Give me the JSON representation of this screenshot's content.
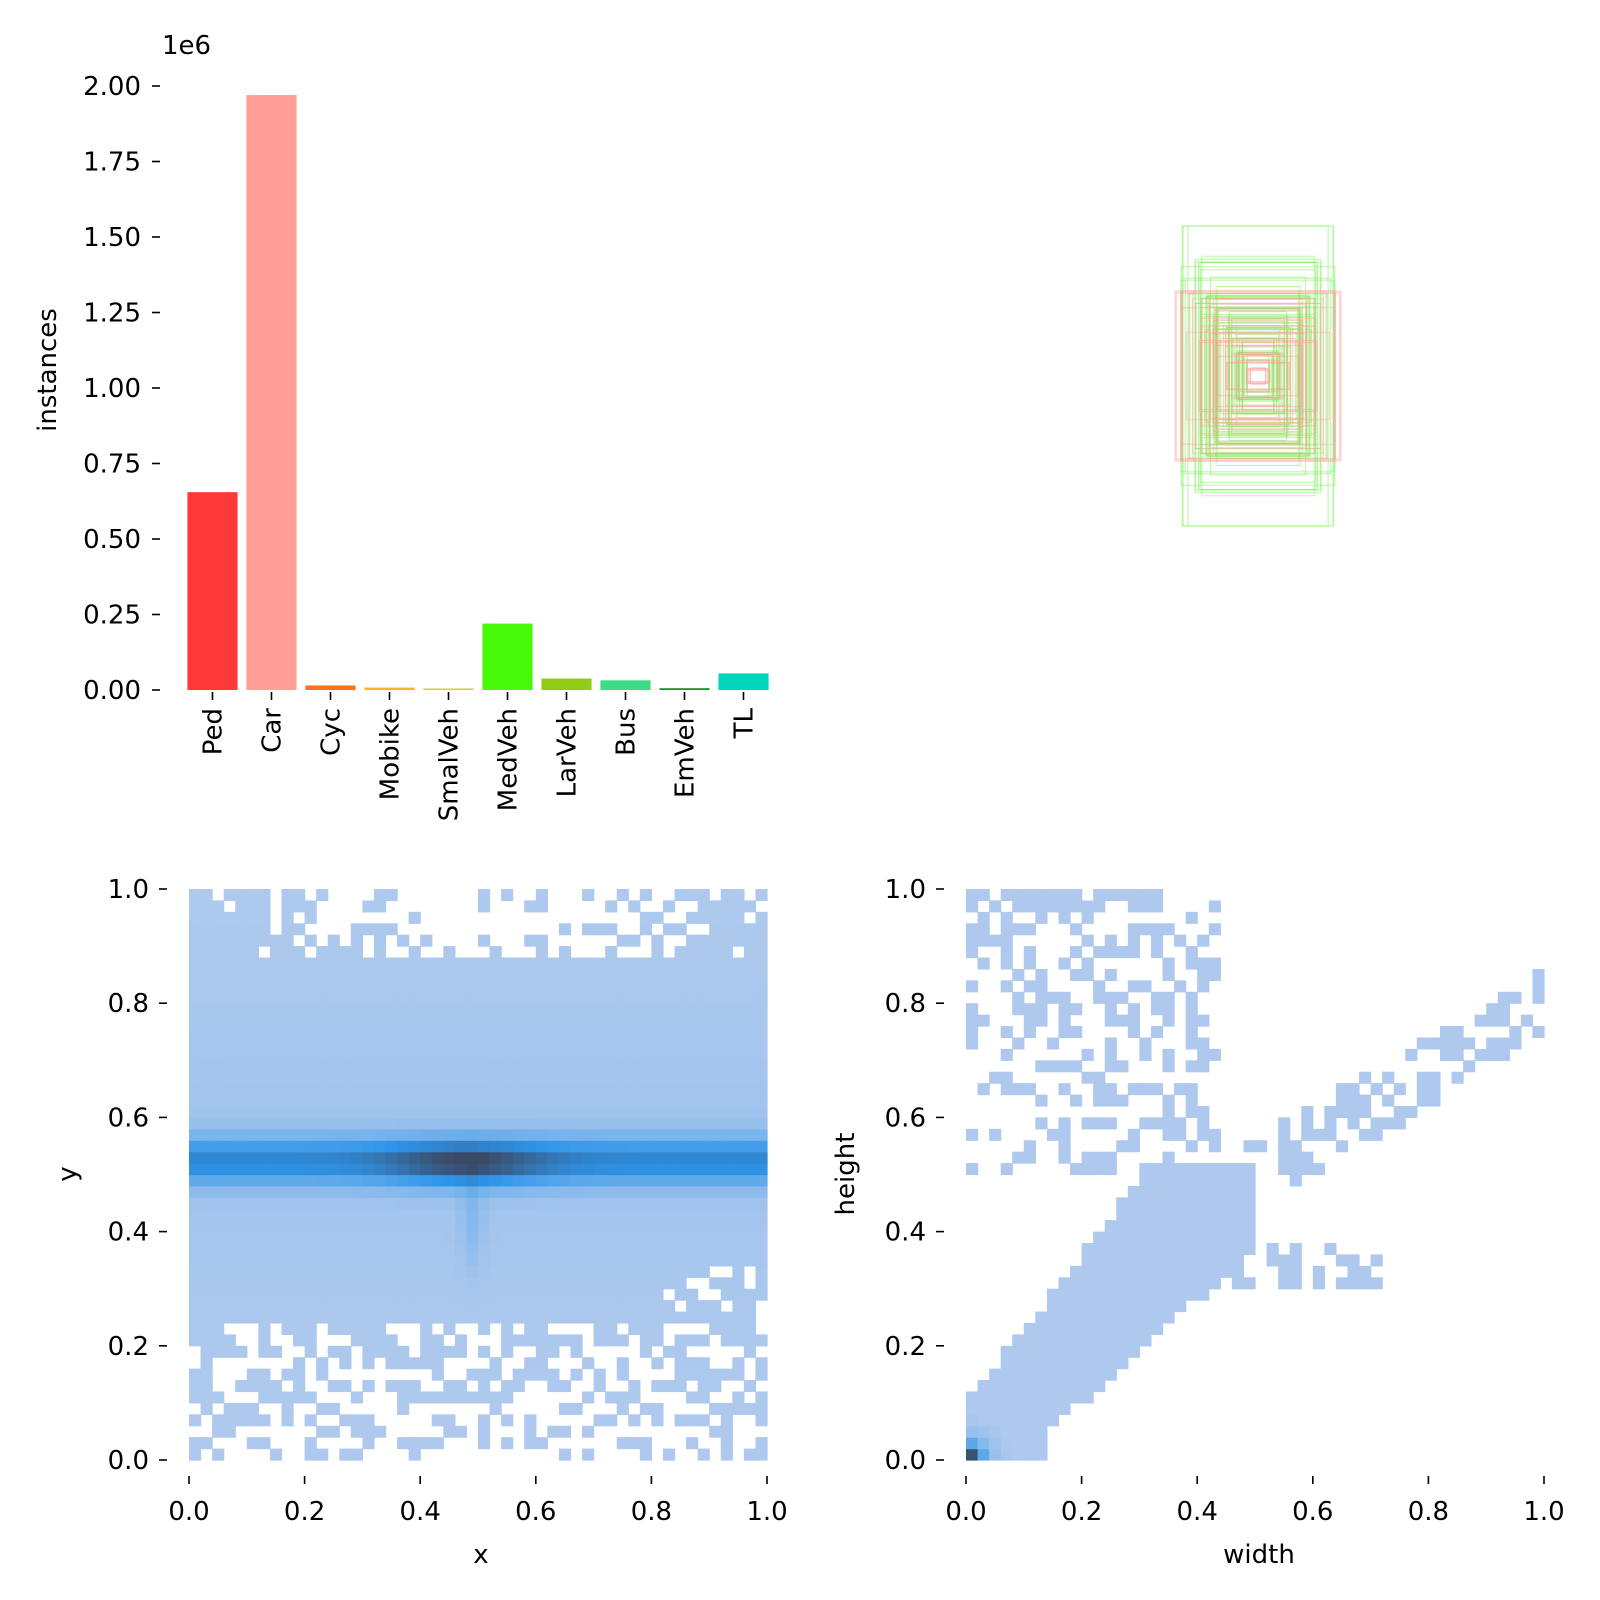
{
  "chart_data": [
    {
      "type": "bar",
      "panel": "class-counts",
      "categories": [
        "Ped",
        "Car",
        "Cyc",
        "Mobike",
        "SmalVeh",
        "MedVeh",
        "LarVeh",
        "Bus",
        "EmVeh",
        "TL"
      ],
      "values": [
        655000,
        1970000,
        15000,
        8000,
        5000,
        220000,
        38000,
        32000,
        6000,
        55000
      ],
      "colors": [
        "#ff3838",
        "#ff9d97",
        "#ff701f",
        "#ffb21d",
        "#cfd231",
        "#48f90a",
        "#92cc17",
        "#3ddb86",
        "#1a9334",
        "#00d4bb"
      ],
      "ylabel": "instances",
      "offset_label": "1e6",
      "ylim": [
        0,
        2000000
      ],
      "yticks": [
        "0.00",
        "0.25",
        "0.50",
        "0.75",
        "1.00",
        "1.25",
        "1.50",
        "1.75",
        "2.00"
      ]
    },
    {
      "type": "box-overlay",
      "panel": "label-boxes",
      "colors": {
        "Car": "#ff9d97",
        "MedVeh": "#7cf25a"
      }
    },
    {
      "type": "heatmap",
      "panel": "xy-density",
      "xlabel": "x",
      "ylabel": "y",
      "xlim": [
        0,
        1
      ],
      "ylim": [
        0,
        1
      ],
      "xticks": [
        "0.0",
        "0.2",
        "0.4",
        "0.6",
        "0.8",
        "1.0"
      ],
      "yticks": [
        "0.0",
        "0.2",
        "0.4",
        "0.6",
        "0.8",
        "1.0"
      ],
      "colors": {
        "low": "#aec9ed",
        "mid": "#2e95ea",
        "high": "#3a4a66"
      }
    },
    {
      "type": "heatmap",
      "panel": "wh-density",
      "xlabel": "width",
      "ylabel": "height",
      "xlim": [
        0,
        1
      ],
      "ylim": [
        0,
        1
      ],
      "xticks": [
        "0.0",
        "0.2",
        "0.4",
        "0.6",
        "0.8",
        "1.0"
      ],
      "yticks": [
        "0.0",
        "0.2",
        "0.4",
        "0.6",
        "0.8",
        "1.0"
      ],
      "colors": {
        "low": "#aec9ed",
        "mid": "#2e95ea",
        "high": "#3a4a66"
      }
    }
  ]
}
